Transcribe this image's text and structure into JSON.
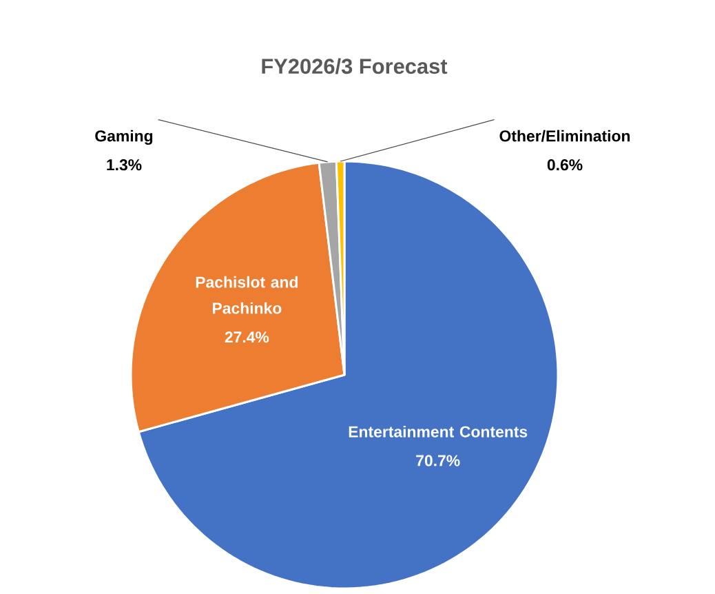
{
  "chart_data": {
    "type": "pie",
    "title": "FY2026/3 Forecast",
    "categories": [
      "Entertainment Contents",
      "Pachislot and Pachinko",
      "Gaming",
      "Other/Elimination"
    ],
    "values": [
      70.7,
      27.4,
      1.3,
      0.6
    ],
    "value_labels": [
      "70.7%",
      "27.4%",
      "1.3%",
      "0.6%"
    ],
    "colors": [
      "#4472c4",
      "#ed7d31",
      "#a5a5a5",
      "#ffc000"
    ]
  }
}
